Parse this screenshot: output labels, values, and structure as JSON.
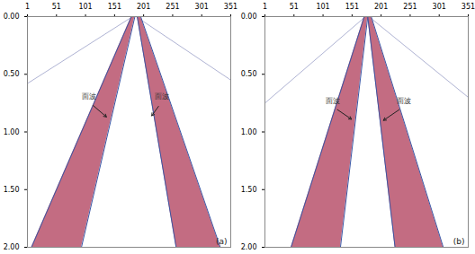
{
  "chart_data": [
    {
      "type": "area",
      "panel_label": "(a)",
      "xlim": [
        1,
        351
      ],
      "xticks": [
        1,
        51,
        101,
        151,
        201,
        251,
        301,
        351
      ],
      "ylim": [
        0,
        2
      ],
      "yticks": [
        {
          "value": 0,
          "label": "0.00"
        },
        {
          "value": 0.5,
          "label": "0.50"
        },
        {
          "value": 1,
          "label": "1.00"
        },
        {
          "value": 1.5,
          "label": "1.50"
        },
        {
          "value": 2,
          "label": "2.00"
        }
      ],
      "series": [
        {
          "type": "line",
          "color": "#9aa0c8",
          "t": [
            0,
            0.58
          ],
          "x": [
            182,
            1
          ]
        },
        {
          "type": "line",
          "color": "#9aa0c8",
          "t": [
            0,
            0.55
          ],
          "x": [
            188,
            351
          ]
        },
        {
          "type": "area",
          "color": "#b8526c",
          "t": [
            0,
            2
          ],
          "x1": [
            180,
            8
          ],
          "x2": [
            186,
            94
          ]
        },
        {
          "type": "area",
          "color": "#b8526c",
          "t": [
            0,
            2
          ],
          "x1": [
            190,
            257
          ],
          "x2": [
            196,
            333
          ]
        }
      ],
      "annotations": [
        {
          "text": "面波",
          "x": 107,
          "y": 0.74,
          "arrow_x": 137,
          "arrow_y": 0.87
        },
        {
          "text": "面波",
          "x": 232,
          "y": 0.74,
          "arrow_x": 215,
          "arrow_y": 0.86
        }
      ]
    },
    {
      "type": "area",
      "panel_label": "(b)",
      "xlim": [
        1,
        351
      ],
      "xticks": [
        1,
        51,
        101,
        151,
        201,
        251,
        301,
        351
      ],
      "ylim": [
        0,
        2
      ],
      "yticks": [
        {
          "value": 0,
          "label": "0.00"
        },
        {
          "value": 0.5,
          "label": "0.50"
        },
        {
          "value": 1,
          "label": "1.00"
        },
        {
          "value": 1.5,
          "label": "1.50"
        },
        {
          "value": 2,
          "label": "2.00"
        }
      ],
      "series": [
        {
          "type": "line",
          "color": "#9aa0c8",
          "t": [
            0,
            0.75
          ],
          "x": [
            174,
            1
          ]
        },
        {
          "type": "line",
          "color": "#9aa0c8",
          "t": [
            0,
            0.7
          ],
          "x": [
            180,
            351
          ]
        },
        {
          "type": "area",
          "color": "#b8526c",
          "t": [
            0,
            2
          ],
          "x1": [
            172,
            46
          ],
          "x2": [
            178,
            131
          ]
        },
        {
          "type": "area",
          "color": "#b8526c",
          "t": [
            0,
            2
          ],
          "x1": [
            178,
            225
          ],
          "x2": [
            184,
            308
          ]
        }
      ],
      "annotations": [
        {
          "text": "面波",
          "x": 118,
          "y": 0.78,
          "arrow_x": 150,
          "arrow_y": 0.89
        },
        {
          "text": "面波",
          "x": 240,
          "y": 0.78,
          "arrow_x": 205,
          "arrow_y": 0.9
        }
      ]
    }
  ]
}
